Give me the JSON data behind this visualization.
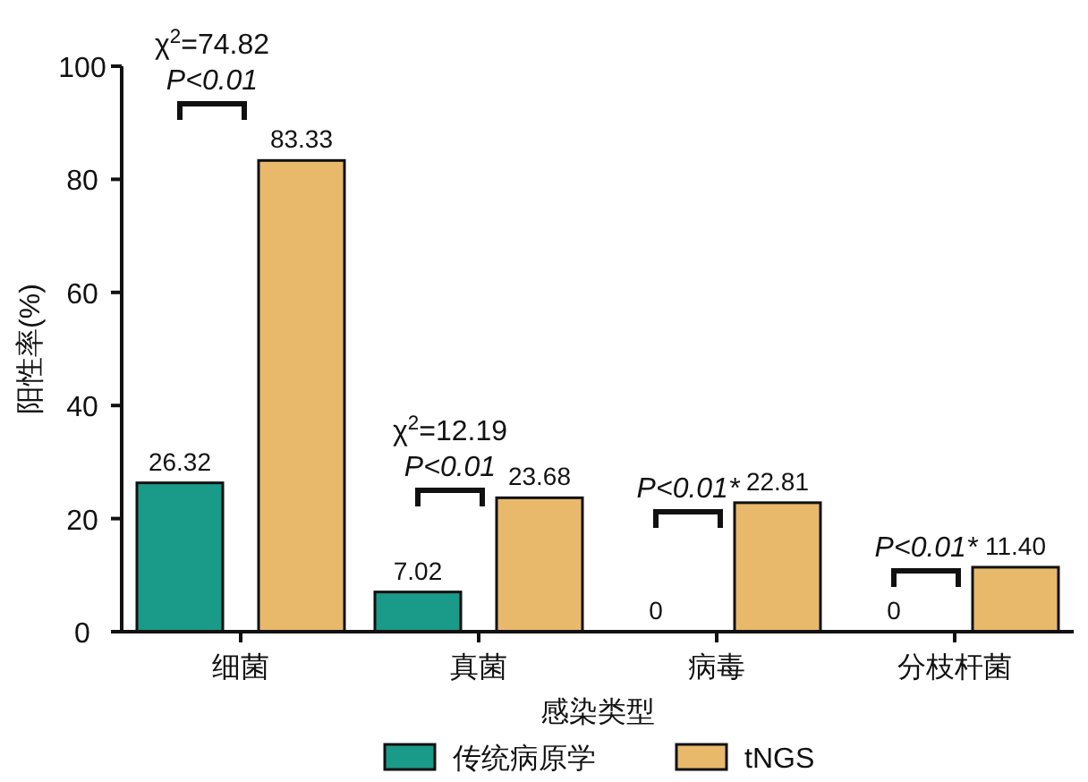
{
  "chart_data": {
    "type": "bar",
    "xlabel": "感染类型",
    "ylabel": "阳性率(%)",
    "categories": [
      "细菌",
      "真菌",
      "病毒",
      "分枝杆菌"
    ],
    "series": [
      {
        "name": "传统病原学",
        "color": "#1a9a88",
        "values": [
          26.32,
          7.02,
          0,
          0
        ],
        "value_labels": [
          "26.32",
          "7.02",
          "0",
          "0"
        ]
      },
      {
        "name": "tNGS",
        "color": "#e9b96b",
        "values": [
          83.33,
          23.68,
          22.81,
          11.4
        ],
        "value_labels": [
          "83.33",
          "23.68",
          "22.81",
          "11.40"
        ]
      }
    ],
    "ylim": [
      0,
      100
    ],
    "yticks": [
      0,
      20,
      40,
      60,
      80,
      100
    ],
    "grid": false,
    "legend": "bottom",
    "annotations": [
      "χ$^{2}$=74.82",
      "P<0.01",
      "χ$^{2}$=12.19",
      "P<0.01",
      "P<0.01*",
      "P<0.01*"
    ]
  }
}
